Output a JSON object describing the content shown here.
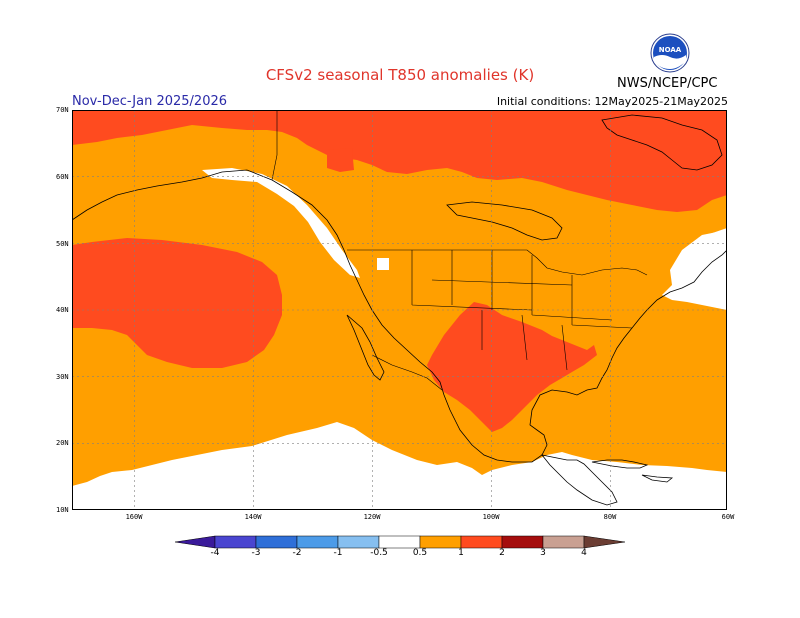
{
  "title": "CFSv2 seasonal T850 anomalies (K)",
  "period": "Nov-Dec-Jan 2025/2026",
  "initial_conditions": "Initial conditions: 12May2025-21May2025",
  "agency": "NWS/NCEP/CPC",
  "logo": {
    "text": "NOAA",
    "icon": "noaa-logo"
  },
  "lat_labels": [
    "70N",
    "60N",
    "50N",
    "40N",
    "30N",
    "20N",
    "10N"
  ],
  "lon_labels": [
    "160W",
    "140W",
    "120W",
    "100W",
    "80W",
    "60W"
  ],
  "colorbar": {
    "labels": [
      "-4",
      "-3",
      "-2",
      "-1",
      "-0.5",
      "0.5",
      "1",
      "2",
      "3",
      "4"
    ],
    "colors": {
      "below_-4": "#3a1a9a",
      "-4_-3": "#4a45d0",
      "-3_-2": "#2f6fd8",
      "-2_-1": "#4c9be8",
      "-1_-0.5": "#86bff0",
      "-0.5_0.5": "#ffffff",
      "0.5_1": "#ff9f00",
      "1_2": "#ff4b1f",
      "2_3": "#a50d0d",
      "3_4": "#c9a092",
      "above_4": "#6b3d33"
    }
  },
  "map_colors": {
    "warm_0_5_1": "#ff9f00",
    "warm_1_2": "#ff4b1f",
    "neutral": "#ffffff",
    "coast": "#000000"
  }
}
